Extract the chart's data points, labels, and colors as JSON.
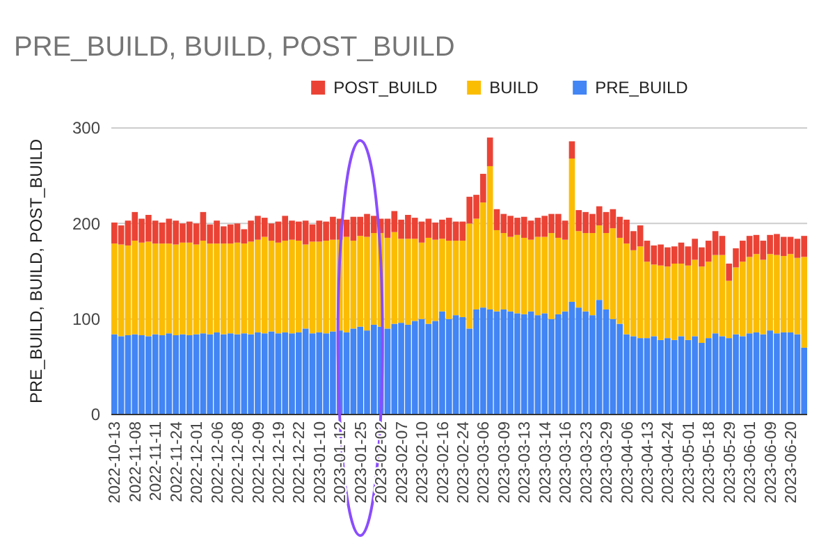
{
  "chart_data": {
    "type": "bar",
    "title": "PRE_BUILD, BUILD, POST_BUILD",
    "ylabel": "PRE_BUILD, BUILD, POST_BUILD",
    "stacked": true,
    "legend": "top",
    "grid": "y",
    "ylim": [
      0,
      300
    ],
    "yticks": [
      0,
      100,
      200,
      300
    ],
    "categories": [
      "2022-10-13",
      null,
      null,
      "2022-11-08",
      null,
      null,
      "2022-11-11",
      null,
      null,
      "2022-11-24",
      null,
      null,
      "2022-12-01",
      null,
      null,
      "2022-12-06",
      null,
      null,
      "2022-12-08",
      null,
      null,
      "2022-12-09",
      null,
      null,
      "2022-12-19",
      null,
      null,
      "2022-12-22",
      null,
      null,
      "2023-01-10",
      null,
      null,
      "2023-01-12",
      null,
      null,
      "2023-01-25",
      null,
      null,
      "2023-02-02",
      null,
      null,
      "2023-02-07",
      null,
      null,
      "2023-02-10",
      null,
      null,
      "2023-02-16",
      null,
      null,
      "2023-02-24",
      null,
      null,
      "2023-03-06",
      null,
      null,
      "2023-03-09",
      null,
      null,
      "2023-03-13",
      null,
      null,
      "2023-03-14",
      null,
      null,
      "2023-03-16",
      null,
      null,
      "2023-03-23",
      null,
      null,
      "2023-03-29",
      null,
      null,
      "2023-04-06",
      null,
      null,
      "2023-04-13",
      null,
      null,
      "2023-04-24",
      null,
      null,
      "2023-05-01",
      null,
      null,
      "2023-05-18",
      null,
      null,
      "2023-05-29",
      null,
      null,
      "2023-06-01",
      null,
      null,
      "2023-06-09",
      null,
      null,
      "2023-06-20",
      null,
      null
    ],
    "series": [
      {
        "name": "PRE_BUILD",
        "color": "#4285f4",
        "values": [
          84,
          82,
          83,
          84,
          83,
          82,
          84,
          83,
          85,
          83,
          84,
          83,
          84,
          85,
          84,
          86,
          84,
          85,
          84,
          85,
          84,
          86,
          85,
          87,
          85,
          86,
          85,
          86,
          90,
          85,
          86,
          85,
          87,
          88,
          86,
          90,
          92,
          88,
          94,
          92,
          90,
          95,
          96,
          94,
          98,
          100,
          95,
          98,
          108,
          100,
          104,
          102,
          90,
          110,
          112,
          110,
          108,
          110,
          108,
          106,
          105,
          108,
          104,
          106,
          100,
          105,
          108,
          118,
          112,
          108,
          104,
          120,
          110,
          100,
          95,
          84,
          82,
          80,
          80,
          82,
          78,
          80,
          78,
          82,
          78,
          82,
          75,
          80,
          85,
          82,
          80,
          84,
          82,
          85,
          86,
          84,
          88,
          85,
          86,
          86,
          84,
          70
        ]
      },
      {
        "name": "BUILD",
        "color": "#fbbc04",
        "values": [
          95,
          96,
          94,
          98,
          97,
          99,
          95,
          96,
          94,
          95,
          96,
          97,
          94,
          97,
          95,
          93,
          95,
          94,
          96,
          94,
          97,
          97,
          101,
          95,
          95,
          96,
          98,
          96,
          88,
          96,
          95,
          97,
          96,
          95,
          100,
          92,
          95,
          98,
          96,
          98,
          95,
          96,
          88,
          90,
          86,
          80,
          90,
          85,
          76,
          82,
          78,
          80,
          110,
          95,
          110,
          150,
          85,
          80,
          78,
          82,
          80,
          75,
          82,
          80,
          90,
          80,
          75,
          150,
          80,
          82,
          86,
          78,
          80,
          95,
          90,
          95,
          90,
          96,
          80,
          75,
          78,
          75,
          80,
          76,
          78,
          80,
          80,
          80,
          82,
          85,
          60,
          70,
          78,
          80,
          82,
          78,
          80,
          82,
          80,
          82,
          80,
          95
        ]
      },
      {
        "name": "POST_BUILD",
        "color": "#ea4335",
        "values": [
          22,
          20,
          26,
          30,
          25,
          28,
          24,
          22,
          26,
          25,
          20,
          22,
          22,
          30,
          20,
          24,
          18,
          20,
          20,
          15,
          22,
          25,
          20,
          18,
          22,
          26,
          20,
          20,
          25,
          18,
          22,
          20,
          24,
          22,
          18,
          25,
          20,
          24,
          18,
          15,
          20,
          22,
          20,
          25,
          22,
          22,
          20,
          18,
          20,
          24,
          20,
          20,
          28,
          25,
          30,
          30,
          22,
          20,
          22,
          18,
          22,
          20,
          20,
          22,
          20,
          25,
          20,
          18,
          22,
          22,
          20,
          20,
          22,
          20,
          22,
          25,
          20,
          22,
          22,
          20,
          22,
          20,
          18,
          22,
          20,
          22,
          20,
          22,
          25,
          20,
          18,
          20,
          22,
          22,
          20,
          20,
          20,
          22,
          20,
          18,
          20,
          22
        ]
      }
    ]
  }
}
